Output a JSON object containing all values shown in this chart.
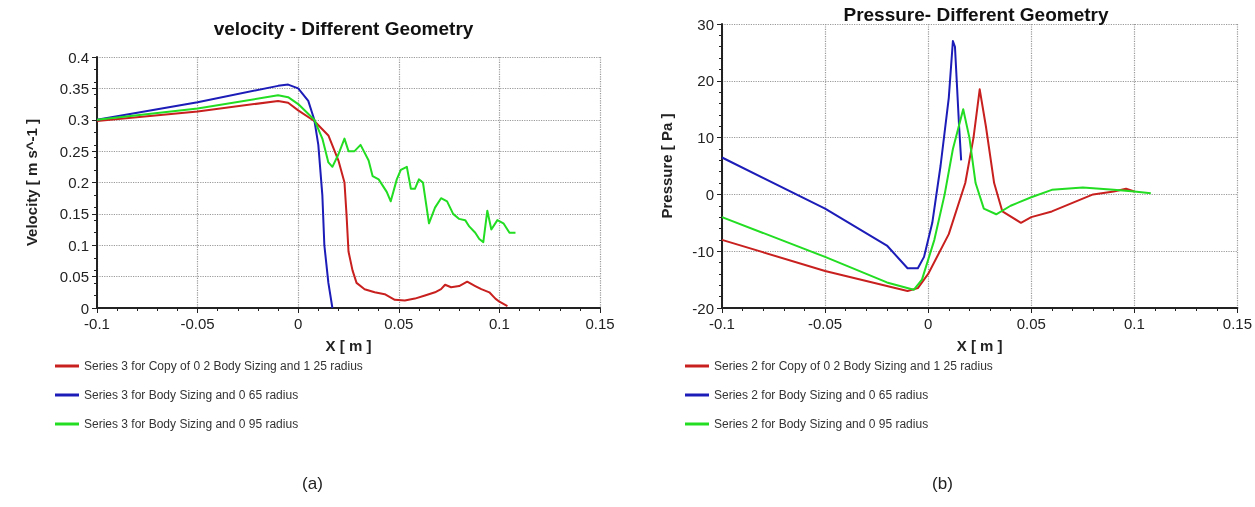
{
  "chart_data": [
    {
      "type": "line",
      "title": "velocity - Different Geometry",
      "xlabel": "X [ m ]",
      "ylabel": "Velocity [ m s^-1 ]",
      "annotations": [
        "(a)"
      ],
      "xlim": [
        -0.1,
        0.15
      ],
      "xticks": [
        -0.1,
        -0.05,
        0,
        0.05,
        0.1,
        0.15
      ],
      "ylim": [
        0,
        0.4
      ],
      "yticks": [
        0,
        0.05,
        0.1,
        0.15,
        0.2,
        0.25,
        0.3,
        0.35,
        0.4
      ],
      "grid": true,
      "legend": "bottom",
      "marker": "none",
      "line_style": "solid",
      "series": [
        {
          "name": "Series 3 for Copy of 0 2 Body Sizing and 1 25 radius",
          "color": "#c8201e",
          "x": [
            -0.1,
            -0.05,
            -0.01,
            -0.005,
            0,
            0.008,
            0.015,
            0.02,
            0.023,
            0.024,
            0.025,
            0.027,
            0.029,
            0.033,
            0.038,
            0.043,
            0.048,
            0.053,
            0.058,
            0.063,
            0.068,
            0.071,
            0.073,
            0.076,
            0.08,
            0.084,
            0.088,
            0.091,
            0.095,
            0.098,
            0.1,
            0.104
          ],
          "values": [
            0.298,
            0.313,
            0.33,
            0.327,
            0.315,
            0.298,
            0.275,
            0.235,
            0.2,
            0.15,
            0.09,
            0.06,
            0.04,
            0.03,
            0.025,
            0.022,
            0.013,
            0.012,
            0.015,
            0.02,
            0.025,
            0.03,
            0.037,
            0.033,
            0.035,
            0.042,
            0.035,
            0.03,
            0.025,
            0.015,
            0.01,
            0.003
          ]
        },
        {
          "name": "Series 3 for Body Sizing and 0 65 radius",
          "color": "#1c1cb8",
          "x": [
            -0.1,
            -0.05,
            -0.01,
            -0.005,
            0,
            0.005,
            0.008,
            0.01,
            0.012,
            0.013,
            0.015,
            0.017
          ],
          "values": [
            0.3,
            0.328,
            0.354,
            0.356,
            0.35,
            0.33,
            0.3,
            0.26,
            0.18,
            0.1,
            0.04,
            0
          ]
        },
        {
          "name": "Series 3 for Body Sizing and 0 95 radius",
          "color": "#22dd22",
          "x": [
            -0.1,
            -0.05,
            -0.01,
            -0.005,
            0,
            0.008,
            0.012,
            0.015,
            0.017,
            0.02,
            0.023,
            0.025,
            0.028,
            0.031,
            0.035,
            0.037,
            0.04,
            0.044,
            0.046,
            0.049,
            0.051,
            0.054,
            0.056,
            0.058,
            0.06,
            0.062,
            0.065,
            0.068,
            0.071,
            0.074,
            0.077,
            0.08,
            0.083,
            0.085,
            0.088,
            0.09,
            0.092,
            0.094,
            0.096,
            0.099,
            0.102,
            0.105,
            0.108
          ],
          "values": [
            0.3,
            0.318,
            0.339,
            0.336,
            0.325,
            0.3,
            0.27,
            0.232,
            0.225,
            0.245,
            0.27,
            0.25,
            0.25,
            0.26,
            0.235,
            0.21,
            0.205,
            0.185,
            0.17,
            0.205,
            0.22,
            0.225,
            0.19,
            0.19,
            0.205,
            0.2,
            0.135,
            0.16,
            0.175,
            0.17,
            0.15,
            0.142,
            0.14,
            0.13,
            0.12,
            0.11,
            0.105,
            0.155,
            0.125,
            0.14,
            0.135,
            0.12,
            0.12
          ]
        }
      ]
    },
    {
      "type": "line",
      "title": "Pressure- Different Geometry",
      "xlabel": "X [ m ]",
      "ylabel": "Pressure [ Pa ]",
      "annotations": [
        "(b)"
      ],
      "xlim": [
        -0.1,
        0.15
      ],
      "xticks": [
        -0.1,
        -0.05,
        0,
        0.05,
        0.1,
        0.15
      ],
      "ylim": [
        -20,
        30
      ],
      "yticks": [
        -20,
        -10,
        0,
        10,
        20,
        30
      ],
      "grid": true,
      "legend": "bottom",
      "marker": "none",
      "line_style": "solid",
      "series": [
        {
          "name": "Series 2 for Copy of 0 2 Body Sizing and 1 25 radius",
          "color": "#c8201e",
          "x": [
            -0.1,
            -0.05,
            -0.01,
            -0.005,
            0,
            0.01,
            0.018,
            0.022,
            0.025,
            0.028,
            0.032,
            0.036,
            0.045,
            0.05,
            0.06,
            0.07,
            0.08,
            0.09,
            0.096,
            0.1
          ],
          "values": [
            -8,
            -13.5,
            -17,
            -16.5,
            -14,
            -7,
            2,
            10,
            18.5,
            12,
            2,
            -3,
            -5,
            -4,
            -3,
            -1.5,
            0,
            0.5,
            1,
            0.5
          ]
        },
        {
          "name": "Series 2 for Body Sizing and 0 65 radius",
          "color": "#1c1cb8",
          "x": [
            -0.1,
            -0.05,
            -0.02,
            -0.01,
            -0.005,
            -0.002,
            0.002,
            0.006,
            0.01,
            0.012,
            0.013,
            0.015,
            0.016
          ],
          "values": [
            6.5,
            -2.5,
            -9,
            -13,
            -13,
            -11,
            -5,
            5,
            17,
            27,
            26,
            12,
            6
          ]
        },
        {
          "name": "Series 2 for Body Sizing and 0 95 radius",
          "color": "#22dd22",
          "x": [
            -0.1,
            -0.05,
            -0.02,
            -0.007,
            -0.003,
            0.003,
            0.008,
            0.012,
            0.017,
            0.02,
            0.023,
            0.027,
            0.033,
            0.04,
            0.05,
            0.06,
            0.075,
            0.09,
            0.1,
            0.108
          ],
          "values": [
            -4,
            -11,
            -15.5,
            -16.8,
            -15,
            -8,
            0,
            8,
            15,
            10,
            2,
            -2.5,
            -3.5,
            -2,
            -0.5,
            0.8,
            1.2,
            0.8,
            0.5,
            0.2
          ]
        }
      ]
    }
  ]
}
